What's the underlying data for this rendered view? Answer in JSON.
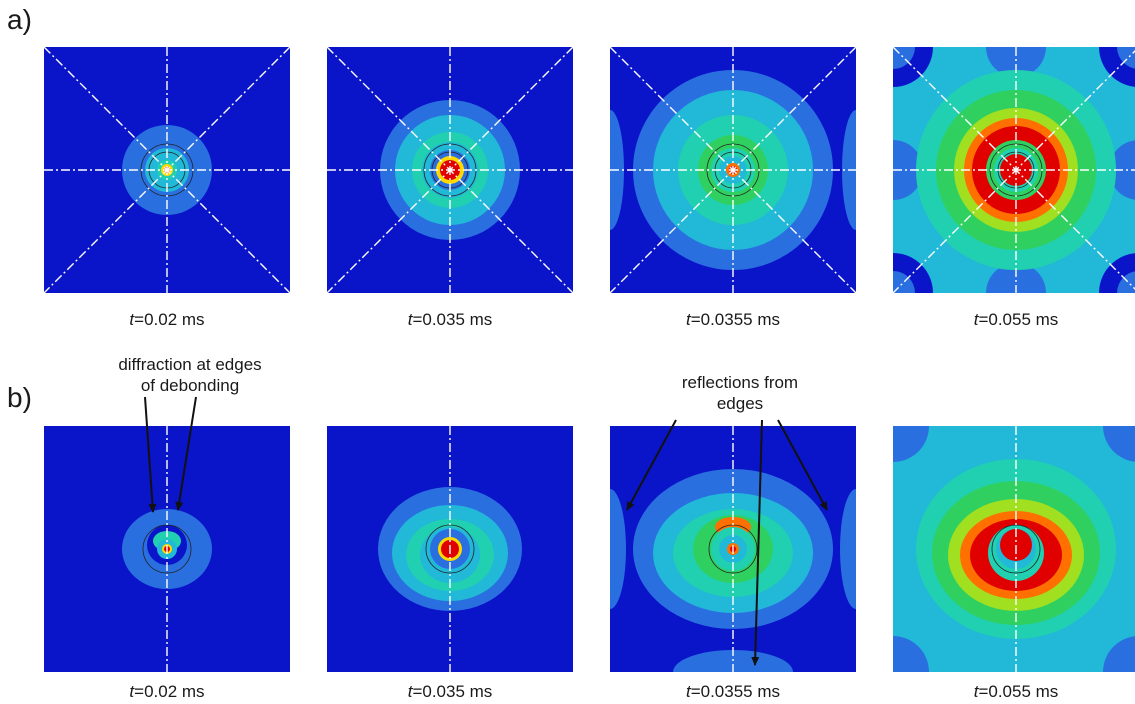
{
  "rows": [
    {
      "label": "a)",
      "panels": [
        {
          "time_var": "t",
          "time_value": "=0.02 ms",
          "frame": "a-0.02"
        },
        {
          "time_var": "t",
          "time_value": "=0.035 ms",
          "frame": "a-0.035"
        },
        {
          "time_var": "t",
          "time_value": "=0.0355 ms",
          "frame": "a-0.0355"
        },
        {
          "time_var": "t",
          "time_value": "=0.055 ms",
          "frame": "a-0.055"
        }
      ]
    },
    {
      "label": "b)",
      "panels": [
        {
          "time_var": "t",
          "time_value": "=0.02 ms",
          "frame": "b-0.02"
        },
        {
          "time_var": "t",
          "time_value": "=0.035 ms",
          "frame": "b-0.035"
        },
        {
          "time_var": "t",
          "time_value": "=0.0355 ms",
          "frame": "b-0.0355"
        },
        {
          "time_var": "t",
          "time_value": "=0.055 ms",
          "frame": "b-0.055"
        }
      ]
    }
  ],
  "annotations": {
    "diffraction_line1": "diffraction at edges",
    "diffraction_line2": "of debonding",
    "reflections_line1": "reflections from",
    "reflections_line2": "edges"
  },
  "colors": {
    "blue": "#0a14c8",
    "light_blue": "#2a6fe0",
    "cyan": "#22b8d8",
    "teal": "#20d0b0",
    "green": "#30d060",
    "yellow_green": "#a0e020",
    "yellow": "#ffd800",
    "orange": "#ff7000",
    "red": "#e00000",
    "line": "#ffffff",
    "text": "#1a1a1a"
  }
}
